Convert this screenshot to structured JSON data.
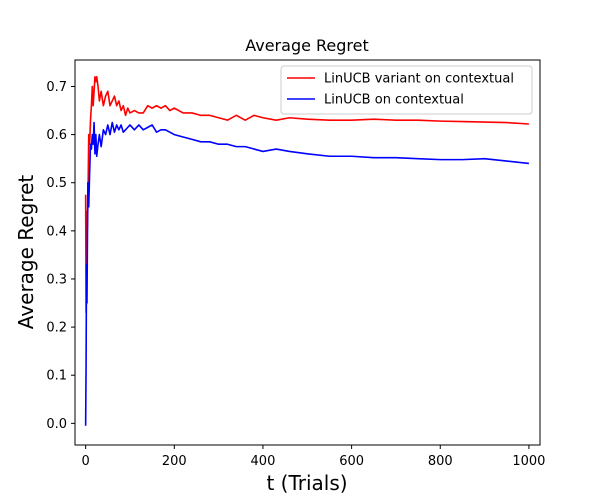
{
  "chart_data": {
    "type": "line",
    "title": "Average Regret",
    "xlabel": "t (Trials)",
    "ylabel": "Average Regret",
    "xlim": [
      -24,
      1025
    ],
    "ylim": [
      -0.045,
      0.755
    ],
    "xticks": [
      0,
      200,
      400,
      600,
      800,
      1000
    ],
    "yticks": [
      0.0,
      0.1,
      0.2,
      0.3,
      0.4,
      0.5,
      0.6,
      0.7
    ],
    "xtick_labels": [
      "0",
      "200",
      "400",
      "600",
      "800",
      "1000"
    ],
    "ytick_labels": [
      "0.0",
      "0.1",
      "0.2",
      "0.3",
      "0.4",
      "0.5",
      "0.6",
      "0.7"
    ],
    "grid": false,
    "legend_position": "top-right",
    "series": [
      {
        "name": "LinUCB variant on contextual",
        "color": "#ff0000",
        "x": [
          0,
          1,
          2,
          3,
          5,
          7,
          9,
          11,
          13,
          15,
          17,
          19,
          21,
          23,
          25,
          28,
          31,
          35,
          40,
          45,
          50,
          55,
          60,
          65,
          70,
          75,
          80,
          85,
          90,
          95,
          100,
          110,
          120,
          130,
          140,
          150,
          160,
          170,
          180,
          190,
          200,
          220,
          240,
          260,
          280,
          300,
          320,
          340,
          360,
          380,
          400,
          430,
          460,
          500,
          550,
          600,
          650,
          700,
          750,
          800,
          850,
          900,
          950,
          1000
        ],
        "y": [
          0.475,
          0.23,
          0.44,
          0.38,
          0.45,
          0.6,
          0.58,
          0.63,
          0.66,
          0.7,
          0.66,
          0.69,
          0.72,
          0.71,
          0.72,
          0.7,
          0.67,
          0.69,
          0.66,
          0.68,
          0.69,
          0.66,
          0.67,
          0.68,
          0.66,
          0.67,
          0.65,
          0.66,
          0.64,
          0.655,
          0.645,
          0.65,
          0.645,
          0.645,
          0.66,
          0.655,
          0.66,
          0.655,
          0.66,
          0.65,
          0.655,
          0.645,
          0.645,
          0.64,
          0.64,
          0.635,
          0.63,
          0.64,
          0.63,
          0.64,
          0.635,
          0.63,
          0.635,
          0.632,
          0.63,
          0.63,
          0.632,
          0.63,
          0.63,
          0.628,
          0.627,
          0.626,
          0.625,
          0.622
        ]
      },
      {
        "name": "LinUCB on contextual",
        "color": "#0000ff",
        "x": [
          0,
          1,
          2,
          3,
          5,
          7,
          9,
          11,
          13,
          15,
          17,
          19,
          21,
          23,
          25,
          28,
          31,
          35,
          40,
          45,
          50,
          55,
          60,
          65,
          70,
          75,
          80,
          85,
          90,
          95,
          100,
          110,
          120,
          130,
          140,
          150,
          160,
          170,
          180,
          190,
          200,
          220,
          240,
          260,
          280,
          300,
          320,
          340,
          360,
          380,
          400,
          430,
          460,
          500,
          550,
          600,
          650,
          700,
          750,
          800,
          850,
          900,
          950,
          1000
        ],
        "y": [
          -0.005,
          0.12,
          0.33,
          0.25,
          0.5,
          0.45,
          0.52,
          0.58,
          0.57,
          0.6,
          0.58,
          0.625,
          0.56,
          0.6,
          0.555,
          0.58,
          0.6,
          0.575,
          0.61,
          0.6,
          0.62,
          0.6,
          0.625,
          0.605,
          0.62,
          0.61,
          0.62,
          0.605,
          0.61,
          0.615,
          0.62,
          0.61,
          0.62,
          0.61,
          0.615,
          0.62,
          0.605,
          0.61,
          0.61,
          0.605,
          0.6,
          0.595,
          0.59,
          0.585,
          0.585,
          0.58,
          0.58,
          0.575,
          0.575,
          0.57,
          0.565,
          0.57,
          0.565,
          0.56,
          0.555,
          0.555,
          0.552,
          0.552,
          0.55,
          0.548,
          0.548,
          0.55,
          0.545,
          0.54
        ]
      }
    ]
  }
}
